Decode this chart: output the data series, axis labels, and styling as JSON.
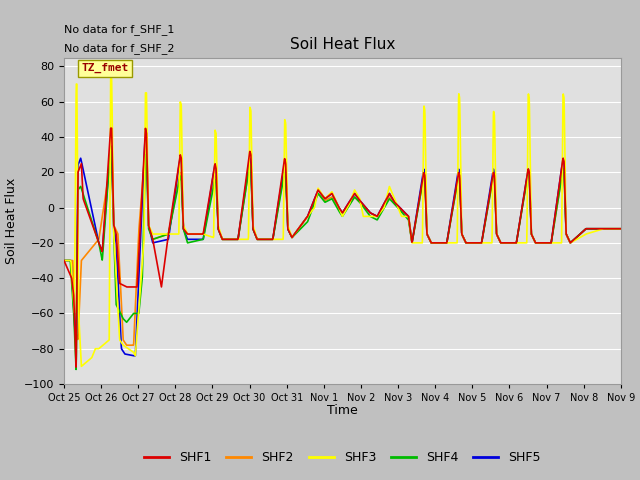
{
  "title": "Soil Heat Flux",
  "ylabel": "Soil Heat Flux",
  "xlabel": "Time",
  "ylim": [
    -100,
    85
  ],
  "yticks": [
    -100,
    -80,
    -60,
    -40,
    -20,
    0,
    20,
    40,
    60,
    80
  ],
  "xtick_labels": [
    "Oct 25",
    "Oct 26",
    "Oct 27",
    "Oct 28",
    "Oct 29",
    "Oct 30",
    "Oct 31",
    "Nov 1",
    "Nov 2",
    "Nov 3",
    "Nov 4",
    "Nov 5",
    "Nov 6",
    "Nov 7",
    "Nov 8",
    "Nov 9"
  ],
  "colors": {
    "SHF1": "#dd0000",
    "SHF2": "#ff8800",
    "SHF3": "#ffff00",
    "SHF4": "#00bb00",
    "SHF5": "#0000dd"
  },
  "legend_label": "TZ_fmet",
  "legend_text_color": "#990000",
  "legend_box_color": "#ffff99",
  "note1": "No data for f_SHF_1",
  "note2": "No data for f_SHF_2",
  "fig_bg_color": "#c0c0c0",
  "plot_bg_color": "#e0e0e0",
  "grid_color": "#ffffff",
  "linewidth": 1.2
}
